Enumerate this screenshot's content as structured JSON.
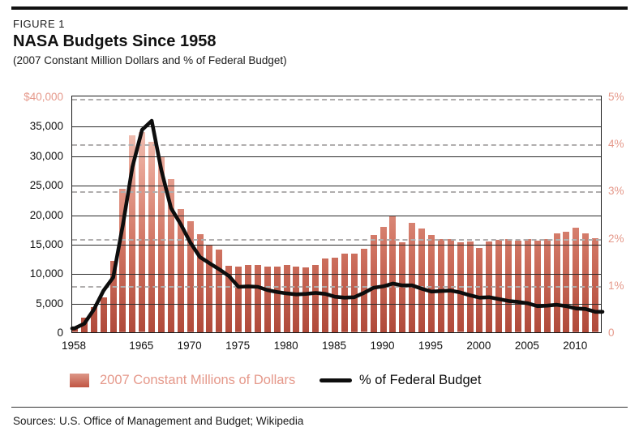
{
  "header": {
    "figure_label": "FIGURE 1",
    "title": "NASA Budgets Since 1958",
    "subtitle": "(2007 Constant Million Dollars and % of Federal Budget)"
  },
  "legend": {
    "bars_label": "2007 Constant Millions of Dollars",
    "line_label": "% of Federal Budget"
  },
  "footer": {
    "sources": "Sources: U.S. Office of Management and Budget; Wikipedia"
  },
  "colors": {
    "bar_gradient_bottom": "#b04a3a",
    "bar_gradient_top": "#f6d8cd",
    "accent_text": "#e5988a",
    "line": "#0d0d0d",
    "solid_grid": "#2a2a2a",
    "dashed_grid": "#b0aeae"
  },
  "chart_data": {
    "type": "bar",
    "title": "NASA Budgets Since 1958",
    "subtitle": "(2007 Constant Million Dollars and % of Federal Budget)",
    "x": [
      1958,
      1959,
      1960,
      1961,
      1962,
      1963,
      1964,
      1965,
      1966,
      1967,
      1968,
      1969,
      1970,
      1971,
      1972,
      1973,
      1974,
      1975,
      1976,
      1977,
      1978,
      1979,
      1980,
      1981,
      1982,
      1983,
      1984,
      1985,
      1986,
      1987,
      1988,
      1989,
      1990,
      1991,
      1992,
      1993,
      1994,
      1995,
      1996,
      1997,
      1998,
      1999,
      2000,
      2001,
      2002,
      2003,
      2004,
      2005,
      2006,
      2007,
      2008,
      2009,
      2010,
      2011,
      2012
    ],
    "series": [
      {
        "name": "2007 Constant Millions of Dollars",
        "type": "bar",
        "axis": "left",
        "values": [
          900,
          2500,
          4300,
          5900,
          12100,
          24300,
          33400,
          33900,
          32300,
          29700,
          26000,
          20900,
          18800,
          16700,
          14700,
          14000,
          11300,
          11100,
          11400,
          11400,
          11200,
          11200,
          11400,
          11200,
          11000,
          11400,
          12500,
          12700,
          13300,
          13300,
          14100,
          16500,
          17900,
          19800,
          15300,
          18600,
          17600,
          16500,
          15800,
          15800,
          15200,
          15400,
          14300,
          15400,
          15700,
          15800,
          15500,
          15800,
          15600,
          15800,
          16800,
          17100,
          17700,
          16800,
          15900
        ]
      },
      {
        "name": "% of Federal Budget",
        "type": "line",
        "axis": "right",
        "values": [
          0.1,
          0.2,
          0.5,
          0.9,
          1.18,
          2.29,
          3.52,
          4.31,
          4.5,
          3.45,
          2.65,
          2.31,
          1.92,
          1.61,
          1.48,
          1.35,
          1.21,
          0.98,
          0.99,
          0.98,
          0.91,
          0.87,
          0.84,
          0.82,
          0.83,
          0.85,
          0.83,
          0.77,
          0.75,
          0.76,
          0.85,
          0.96,
          0.99,
          1.05,
          1.01,
          1.01,
          0.94,
          0.88,
          0.89,
          0.9,
          0.86,
          0.8,
          0.75,
          0.76,
          0.72,
          0.68,
          0.66,
          0.63,
          0.57,
          0.58,
          0.6,
          0.57,
          0.52,
          0.51,
          0.45
        ]
      }
    ],
    "left_axis": {
      "min": 0,
      "max": 40000,
      "ticks": [
        {
          "label": "$40,000",
          "value": 40000,
          "accent": true
        },
        {
          "label": "35,000",
          "value": 35000
        },
        {
          "label": "30,000",
          "value": 30000
        },
        {
          "label": "25,000",
          "value": 25000
        },
        {
          "label": "20,000",
          "value": 20000
        },
        {
          "label": "15,000",
          "value": 15000
        },
        {
          "label": "10,000",
          "value": 10000
        },
        {
          "label": "5,000",
          "value": 5000
        },
        {
          "label": "0",
          "value": 0
        }
      ]
    },
    "right_axis": {
      "min": 0,
      "max": 5,
      "ticks": [
        {
          "label": "5%",
          "value": 5
        },
        {
          "label": "4%",
          "value": 4
        },
        {
          "label": "3%",
          "value": 3
        },
        {
          "label": "2%",
          "value": 2
        },
        {
          "label": "1%",
          "value": 1
        },
        {
          "label": "0",
          "value": 0
        }
      ]
    },
    "x_ticks": [
      1958,
      1965,
      1970,
      1975,
      1980,
      1985,
      1990,
      1995,
      2000,
      2005,
      2010
    ],
    "grid": {
      "solid_left_values": [
        5000,
        10000,
        15000,
        20000,
        25000,
        30000,
        35000
      ],
      "dashed_right_values": [
        1,
        2,
        3,
        4,
        5
      ]
    },
    "legend_position": "bottom"
  }
}
